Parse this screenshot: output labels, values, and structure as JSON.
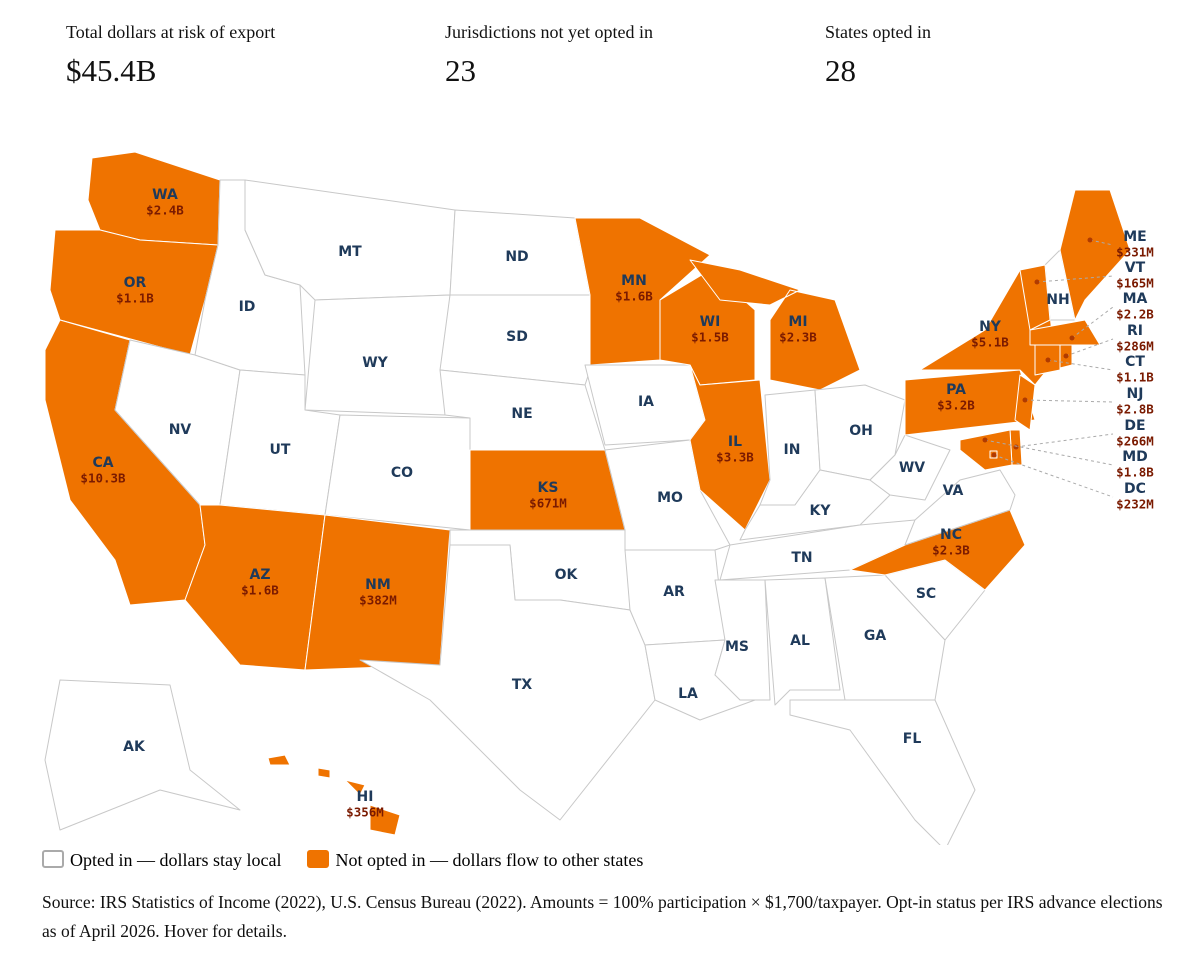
{
  "stats": [
    {
      "label": "Total dollars at risk of export",
      "value": "$45.4B"
    },
    {
      "label": "Jurisdictions not yet opted in",
      "value": "23"
    },
    {
      "label": "States opted in",
      "value": "28"
    }
  ],
  "states": [
    {
      "abbr": "WA",
      "amount": "$2.4B"
    },
    {
      "abbr": "OR",
      "amount": "$1.1B"
    },
    {
      "abbr": "CA",
      "amount": "$10.3B"
    },
    {
      "abbr": "NV"
    },
    {
      "abbr": "ID"
    },
    {
      "abbr": "MT"
    },
    {
      "abbr": "WY"
    },
    {
      "abbr": "UT"
    },
    {
      "abbr": "CO"
    },
    {
      "abbr": "AZ",
      "amount": "$1.6B"
    },
    {
      "abbr": "NM",
      "amount": "$382M"
    },
    {
      "abbr": "ND"
    },
    {
      "abbr": "SD"
    },
    {
      "abbr": "NE"
    },
    {
      "abbr": "KS",
      "amount": "$671M"
    },
    {
      "abbr": "OK"
    },
    {
      "abbr": "TX"
    },
    {
      "abbr": "MN",
      "amount": "$1.6B"
    },
    {
      "abbr": "IA"
    },
    {
      "abbr": "MO"
    },
    {
      "abbr": "AR"
    },
    {
      "abbr": "LA"
    },
    {
      "abbr": "WI",
      "amount": "$1.5B"
    },
    {
      "abbr": "IL",
      "amount": "$3.3B"
    },
    {
      "abbr": "MI",
      "amount": "$2.3B"
    },
    {
      "abbr": "IN"
    },
    {
      "abbr": "OH"
    },
    {
      "abbr": "KY"
    },
    {
      "abbr": "TN"
    },
    {
      "abbr": "MS"
    },
    {
      "abbr": "AL"
    },
    {
      "abbr": "GA"
    },
    {
      "abbr": "FL"
    },
    {
      "abbr": "SC"
    },
    {
      "abbr": "NC",
      "amount": "$2.3B"
    },
    {
      "abbr": "VA"
    },
    {
      "abbr": "WV"
    },
    {
      "abbr": "PA",
      "amount": "$3.2B"
    },
    {
      "abbr": "NY",
      "amount": "$5.1B"
    },
    {
      "abbr": "NH"
    },
    {
      "abbr": "ME",
      "amount": "$331M"
    },
    {
      "abbr": "VT",
      "amount": "$165M"
    },
    {
      "abbr": "MA",
      "amount": "$2.2B"
    },
    {
      "abbr": "RI",
      "amount": "$286M"
    },
    {
      "abbr": "CT",
      "amount": "$1.1B"
    },
    {
      "abbr": "NJ",
      "amount": "$2.8B"
    },
    {
      "abbr": "DE",
      "amount": "$266M"
    },
    {
      "abbr": "MD",
      "amount": "$1.8B"
    },
    {
      "abbr": "DC",
      "amount": "$232M"
    },
    {
      "abbr": "AK"
    },
    {
      "abbr": "HI",
      "amount": "$356M"
    }
  ],
  "legend": [
    {
      "label": "Opted in — dollars stay local",
      "color": "#ffffff",
      "border": "#aaaaaa"
    },
    {
      "label": "Not opted in — dollars flow to other states",
      "color": "#ef7300",
      "border": "#ef7300"
    }
  ],
  "source": "Source: IRS Statistics of Income (2022), U.S. Census Bureau (2022). Amounts = 100% participation × $1,700/taxpayer. Opt-in status per IRS advance elections as of April 2026. Hover for details."
}
